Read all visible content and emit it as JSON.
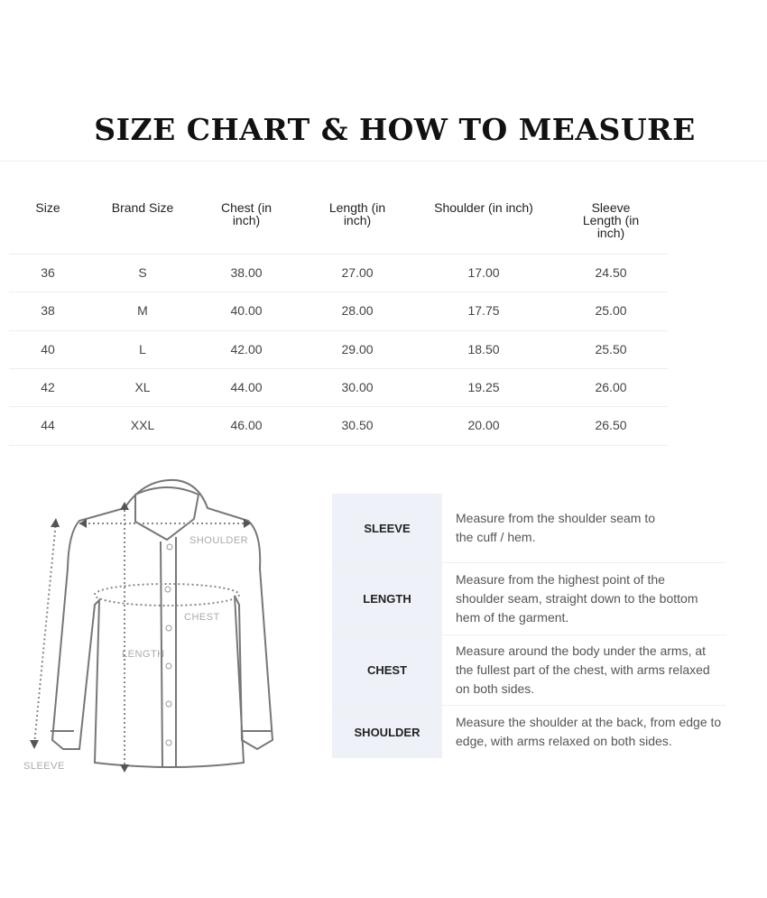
{
  "title": "SIZE CHART & HOW TO MEASURE",
  "size_table": {
    "headers": [
      "Size",
      "Brand Size",
      "Chest (in inch)",
      "Length (in inch)",
      "Shoulder (in inch)",
      "Sleeve Length (in inch)"
    ],
    "rows": [
      [
        "36",
        "S",
        "38.00",
        "27.00",
        "17.00",
        "24.50"
      ],
      [
        "38",
        "M",
        "40.00",
        "28.00",
        "17.75",
        "25.00"
      ],
      [
        "40",
        "L",
        "42.00",
        "29.00",
        "18.50",
        "25.50"
      ],
      [
        "42",
        "XL",
        "44.00",
        "30.00",
        "19.25",
        "26.00"
      ],
      [
        "44",
        "XXL",
        "46.00",
        "30.50",
        "20.00",
        "26.50"
      ]
    ]
  },
  "diagram": {
    "labels": {
      "shoulder": "SHOULDER",
      "chest": "CHEST",
      "length": "LENGTH",
      "sleeve": "SLEEVE"
    }
  },
  "how_to_measure": [
    {
      "label": "SLEEVE",
      "desc": "Measure from the shoulder seam to the cuff / hem."
    },
    {
      "label": "LENGTH",
      "desc": "Measure from the highest point of the shoulder seam, straight down to the bottom hem of the garment."
    },
    {
      "label": "CHEST",
      "desc": "Measure around the body under the arms, at the fullest part of the chest, with arms relaxed on both sides."
    },
    {
      "label": "SHOULDER",
      "desc": "Measure the shoulder at the back, from edge to edge, with arms relaxed on both sides."
    }
  ],
  "colors": {
    "label_bg": "#eef1f7",
    "title": "#111111"
  }
}
